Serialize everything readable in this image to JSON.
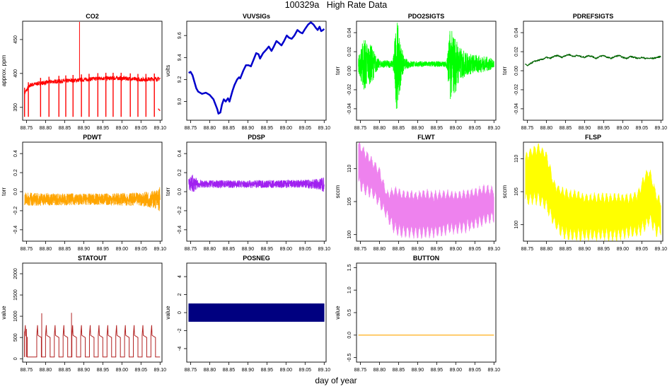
{
  "page": {
    "title": "100329a   High Rate Data",
    "xlabel": "day of year"
  },
  "chart_data": [
    {
      "type": "line",
      "title": "CO2",
      "ylabel": "approx. ppm",
      "xlim": [
        88.74,
        89.105
      ],
      "ylim": [
        331,
        477
      ],
      "yticks": [
        350,
        400,
        450
      ],
      "xticks": [
        88.75,
        88.8,
        88.85,
        88.9,
        88.95,
        89.0,
        89.05,
        89.1
      ],
      "color": "#ff0000",
      "baseline": [
        [
          88.745,
          371
        ],
        [
          88.76,
          383
        ],
        [
          88.78,
          385
        ],
        [
          88.82,
          388
        ],
        [
          88.88,
          390
        ],
        [
          88.95,
          393
        ],
        [
          89.0,
          393
        ],
        [
          89.05,
          391
        ],
        [
          89.09,
          392
        ]
      ],
      "noise": 3,
      "spikes_down": [
        88.745,
        88.755,
        88.787,
        88.809,
        88.835,
        88.853,
        88.872,
        88.894,
        88.914,
        88.937,
        88.958,
        88.977,
        88.998,
        89.022,
        89.042,
        89.063,
        89.085
      ],
      "spike_down_to": 336,
      "spikes_up": [
        [
          88.889,
          476
        ]
      ],
      "tail": [
        [
          89.095,
          348
        ],
        [
          89.1,
          345
        ]
      ]
    },
    {
      "type": "line",
      "title": "VUVSIGs",
      "ylabel": "volts",
      "xlim": [
        88.74,
        89.105
      ],
      "ylim": [
        8.83,
        9.73
      ],
      "yticks": [
        9.0,
        9.2,
        9.4,
        9.6
      ],
      "xticks": [
        88.75,
        88.8,
        88.85,
        88.9,
        88.95,
        89.0,
        89.05,
        89.1
      ],
      "color": "#0000cc",
      "line_width": 2.5,
      "points": [
        [
          88.745,
          9.26
        ],
        [
          88.75,
          9.27
        ],
        [
          88.755,
          9.24
        ],
        [
          88.76,
          9.18
        ],
        [
          88.765,
          9.12
        ],
        [
          88.77,
          9.09
        ],
        [
          88.78,
          9.07
        ],
        [
          88.79,
          9.08
        ],
        [
          88.8,
          9.06
        ],
        [
          88.81,
          9.02
        ],
        [
          88.82,
          8.93
        ],
        [
          88.823,
          8.89
        ],
        [
          88.828,
          8.9
        ],
        [
          88.832,
          8.97
        ],
        [
          88.837,
          9.02
        ],
        [
          88.842,
          9.0
        ],
        [
          88.848,
          9.03
        ],
        [
          88.852,
          9.0
        ],
        [
          88.86,
          9.1
        ],
        [
          88.865,
          9.15
        ],
        [
          88.872,
          9.2
        ],
        [
          88.877,
          9.22
        ],
        [
          88.88,
          9.21
        ],
        [
          88.888,
          9.28
        ],
        [
          88.895,
          9.33
        ],
        [
          88.902,
          9.33
        ],
        [
          88.908,
          9.32
        ],
        [
          88.915,
          9.38
        ],
        [
          88.922,
          9.44
        ],
        [
          88.928,
          9.43
        ],
        [
          88.932,
          9.39
        ],
        [
          88.94,
          9.44
        ],
        [
          88.948,
          9.47
        ],
        [
          88.955,
          9.5
        ],
        [
          88.962,
          9.46
        ],
        [
          88.968,
          9.5
        ],
        [
          88.975,
          9.55
        ],
        [
          88.982,
          9.53
        ],
        [
          88.988,
          9.51
        ],
        [
          88.995,
          9.55
        ],
        [
          89.002,
          9.6
        ],
        [
          89.008,
          9.58
        ],
        [
          89.015,
          9.57
        ],
        [
          89.022,
          9.6
        ],
        [
          89.03,
          9.65
        ],
        [
          89.037,
          9.63
        ],
        [
          89.043,
          9.62
        ],
        [
          89.05,
          9.66
        ],
        [
          89.058,
          9.7
        ],
        [
          89.065,
          9.72
        ],
        [
          89.072,
          9.7
        ],
        [
          89.078,
          9.67
        ],
        [
          89.083,
          9.65
        ],
        [
          89.088,
          9.68
        ],
        [
          89.092,
          9.64
        ],
        [
          89.097,
          9.65
        ],
        [
          89.1,
          9.66
        ]
      ]
    },
    {
      "type": "line",
      "title": "PDO2SIGTS",
      "ylabel": "torr",
      "xlim": [
        88.74,
        89.105
      ],
      "ylim": [
        -0.052,
        0.052
      ],
      "yticks": [
        -0.04,
        -0.02,
        0.0,
        0.02,
        0.04
      ],
      "xticks": [
        88.75,
        88.8,
        88.85,
        88.9,
        88.95,
        89.0,
        89.05,
        89.1
      ],
      "color": "#00ff00",
      "baseline": [
        [
          88.745,
          0.007
        ],
        [
          89.1,
          0.007
        ]
      ],
      "envelope": [
        [
          88.745,
          0.008
        ],
        [
          88.76,
          0.03
        ],
        [
          88.77,
          0.022
        ],
        [
          88.78,
          0.02
        ],
        [
          88.79,
          0.01
        ],
        [
          88.8,
          0.004
        ],
        [
          88.835,
          0.004
        ],
        [
          88.845,
          0.05
        ],
        [
          88.855,
          0.025
        ],
        [
          88.865,
          0.006
        ],
        [
          88.89,
          0.003
        ],
        [
          88.93,
          0.003
        ],
        [
          88.975,
          0.003
        ],
        [
          88.985,
          0.038
        ],
        [
          89.0,
          0.03
        ],
        [
          89.01,
          0.018
        ],
        [
          89.03,
          0.012
        ],
        [
          89.05,
          0.01
        ],
        [
          89.08,
          0.008
        ],
        [
          89.1,
          0.005
        ]
      ]
    },
    {
      "type": "line",
      "title": "PDREFSIGTS",
      "ylabel": "torr",
      "xlim": [
        88.74,
        89.105
      ],
      "ylim": [
        -0.052,
        0.052
      ],
      "yticks": [
        -0.04,
        -0.02,
        0.0,
        0.02,
        0.04
      ],
      "xticks": [
        88.75,
        88.8,
        88.85,
        88.9,
        88.95,
        89.0,
        89.05,
        89.1
      ],
      "color": "#006400",
      "noise": 0.0007,
      "points": [
        [
          88.745,
          0.007
        ],
        [
          88.75,
          0.005
        ],
        [
          88.76,
          0.008
        ],
        [
          88.77,
          0.01
        ],
        [
          88.78,
          0.011
        ],
        [
          88.79,
          0.012
        ],
        [
          88.8,
          0.014
        ],
        [
          88.81,
          0.013
        ],
        [
          88.82,
          0.015
        ],
        [
          88.83,
          0.016
        ],
        [
          88.84,
          0.014
        ],
        [
          88.85,
          0.016
        ],
        [
          88.86,
          0.017
        ],
        [
          88.87,
          0.015
        ],
        [
          88.88,
          0.016
        ],
        [
          88.89,
          0.015
        ],
        [
          88.9,
          0.014
        ],
        [
          88.91,
          0.016
        ],
        [
          88.92,
          0.015
        ],
        [
          88.93,
          0.013
        ],
        [
          88.94,
          0.015
        ],
        [
          88.95,
          0.016
        ],
        [
          88.96,
          0.014
        ],
        [
          88.97,
          0.013
        ],
        [
          88.98,
          0.015
        ],
        [
          88.99,
          0.016
        ],
        [
          89.0,
          0.014
        ],
        [
          89.01,
          0.013
        ],
        [
          89.02,
          0.015
        ],
        [
          89.03,
          0.014
        ],
        [
          89.04,
          0.013
        ],
        [
          89.05,
          0.014
        ],
        [
          89.06,
          0.013
        ],
        [
          89.07,
          0.013
        ],
        [
          89.08,
          0.013
        ],
        [
          89.09,
          0.014
        ],
        [
          89.1,
          0.015
        ]
      ]
    },
    {
      "type": "line",
      "title": "PDWT",
      "ylabel": "torr",
      "xlim": [
        88.74,
        89.105
      ],
      "ylim": [
        -0.52,
        0.52
      ],
      "yticks": [
        -0.4,
        -0.2,
        0.0,
        0.2,
        0.4
      ],
      "xticks": [
        88.75,
        88.8,
        88.85,
        88.9,
        88.95,
        89.0,
        89.05,
        89.1
      ],
      "color": "#ffa500",
      "baseline": [
        [
          88.745,
          -0.08
        ],
        [
          89.1,
          -0.08
        ]
      ],
      "envelope": [
        [
          88.745,
          0.07
        ],
        [
          88.76,
          0.07
        ],
        [
          88.9,
          0.06
        ],
        [
          89.05,
          0.07
        ],
        [
          89.09,
          0.1
        ],
        [
          89.1,
          0.15
        ]
      ]
    },
    {
      "type": "line",
      "title": "PDSP",
      "ylabel": "torr",
      "xlim": [
        88.74,
        89.105
      ],
      "ylim": [
        -0.52,
        0.52
      ],
      "yticks": [
        -0.4,
        -0.2,
        0.0,
        0.2,
        0.4
      ],
      "xticks": [
        88.75,
        88.8,
        88.85,
        88.9,
        88.95,
        89.0,
        89.05,
        89.1
      ],
      "color": "#a020f0",
      "baseline": [
        [
          88.745,
          0.08
        ],
        [
          89.1,
          0.08
        ]
      ],
      "envelope": [
        [
          88.745,
          0.06
        ],
        [
          88.755,
          0.1
        ],
        [
          88.77,
          0.04
        ],
        [
          88.9,
          0.04
        ],
        [
          89.05,
          0.045
        ],
        [
          89.09,
          0.06
        ],
        [
          89.1,
          0.09
        ]
      ]
    },
    {
      "type": "area",
      "title": "FLWT",
      "ylabel": "sccm",
      "xlim": [
        88.74,
        89.105
      ],
      "ylim": [
        99,
        114
      ],
      "yticks": [
        100,
        105,
        110
      ],
      "xticks": [
        88.75,
        88.8,
        88.85,
        88.9,
        88.95,
        89.0,
        89.05,
        89.1
      ],
      "color": "#ee82ee",
      "upper": [
        [
          88.745,
          113.5
        ],
        [
          88.76,
          112.5
        ],
        [
          88.78,
          111
        ],
        [
          88.8,
          109.5
        ],
        [
          88.82,
          106
        ],
        [
          88.84,
          106.5
        ],
        [
          88.86,
          106
        ],
        [
          88.88,
          106
        ],
        [
          88.9,
          105.8
        ],
        [
          88.92,
          106.2
        ],
        [
          88.94,
          105.8
        ],
        [
          88.96,
          106
        ],
        [
          88.98,
          106
        ],
        [
          89.0,
          105.8
        ],
        [
          89.02,
          106
        ],
        [
          89.04,
          106.2
        ],
        [
          89.06,
          106.5
        ],
        [
          89.08,
          106.8
        ],
        [
          89.1,
          106.5
        ]
      ],
      "lower": [
        [
          88.745,
          108
        ],
        [
          88.76,
          107
        ],
        [
          88.78,
          106.5
        ],
        [
          88.8,
          105
        ],
        [
          88.82,
          103
        ],
        [
          88.84,
          101
        ],
        [
          88.86,
          100.5
        ],
        [
          88.88,
          100.5
        ],
        [
          88.9,
          100.3
        ],
        [
          88.92,
          100.5
        ],
        [
          88.94,
          100.5
        ],
        [
          88.96,
          100.7
        ],
        [
          88.98,
          101
        ],
        [
          89.0,
          101
        ],
        [
          89.02,
          101.2
        ],
        [
          89.04,
          101.5
        ],
        [
          89.06,
          102
        ],
        [
          89.08,
          102.5
        ],
        [
          89.1,
          102.8
        ]
      ],
      "wave_period": 0.0105
    },
    {
      "type": "area",
      "title": "FLSP",
      "ylabel": "sccm",
      "xlim": [
        88.74,
        89.105
      ],
      "ylim": [
        97.5,
        112.5
      ],
      "yticks": [
        100,
        105,
        110
      ],
      "xticks": [
        88.75,
        88.8,
        88.85,
        88.9,
        88.95,
        89.0,
        89.05,
        89.1
      ],
      "color": "#ffff00",
      "upper": [
        [
          88.745,
          110
        ],
        [
          88.76,
          111
        ],
        [
          88.78,
          111.5
        ],
        [
          88.8,
          110.5
        ],
        [
          88.82,
          106
        ],
        [
          88.84,
          105
        ],
        [
          88.86,
          104.5
        ],
        [
          88.88,
          104.5
        ],
        [
          88.9,
          104
        ],
        [
          88.92,
          104
        ],
        [
          88.94,
          104
        ],
        [
          88.96,
          104
        ],
        [
          88.98,
          104
        ],
        [
          89.0,
          104
        ],
        [
          89.02,
          104
        ],
        [
          89.04,
          104.5
        ],
        [
          89.06,
          107.5
        ],
        [
          89.07,
          108
        ],
        [
          89.08,
          106
        ],
        [
          89.09,
          104
        ],
        [
          89.1,
          103.5
        ]
      ],
      "lower": [
        [
          88.745,
          104
        ],
        [
          88.76,
          104
        ],
        [
          88.78,
          104
        ],
        [
          88.8,
          103
        ],
        [
          88.82,
          100.5
        ],
        [
          88.84,
          99
        ],
        [
          88.86,
          98.5
        ],
        [
          88.88,
          98.5
        ],
        [
          88.9,
          98.5
        ],
        [
          88.92,
          98.5
        ],
        [
          88.94,
          98.5
        ],
        [
          88.96,
          98.5
        ],
        [
          88.98,
          98.5
        ],
        [
          89.0,
          98.8
        ],
        [
          89.02,
          99
        ],
        [
          89.04,
          99
        ],
        [
          89.06,
          100
        ],
        [
          89.07,
          101
        ],
        [
          89.08,
          100
        ],
        [
          89.09,
          99
        ],
        [
          89.1,
          99.5
        ]
      ],
      "wave_period": 0.0105
    },
    {
      "type": "line",
      "title": "STATOUT",
      "ylabel": "value",
      "xlim": [
        88.74,
        89.105
      ],
      "ylim": [
        -80,
        2250
      ],
      "yticks": [
        0,
        500,
        1000,
        1500,
        2000
      ],
      "xticks": [
        88.75,
        88.8,
        88.85,
        88.9,
        88.95,
        89.0,
        89.05,
        89.1
      ],
      "color": "#b22222",
      "base": 40,
      "pulse_level": 550,
      "peak_level": 790,
      "pulses": [
        [
          88.745,
          88.752
        ],
        [
          88.777,
          88.789
        ],
        [
          88.8,
          88.812
        ],
        [
          88.823,
          88.835
        ],
        [
          88.846,
          88.858
        ],
        [
          88.869,
          88.881
        ],
        [
          88.892,
          88.904
        ],
        [
          88.915,
          88.927
        ],
        [
          88.938,
          88.95
        ],
        [
          88.961,
          88.973
        ],
        [
          88.984,
          88.996
        ],
        [
          89.007,
          89.019
        ],
        [
          89.03,
          89.042
        ],
        [
          89.053,
          89.065
        ],
        [
          89.076,
          89.088
        ]
      ],
      "spikes": [
        [
          88.79,
          1070
        ],
        [
          88.868,
          1080
        ],
        [
          88.745,
          640
        ],
        [
          88.75,
          700
        ]
      ]
    },
    {
      "type": "area",
      "title": "POSNEG",
      "ylabel": "value",
      "xlim": [
        88.74,
        89.105
      ],
      "ylim": [
        -5.5,
        5.5
      ],
      "yticks": [
        -4,
        -2,
        0,
        2,
        4
      ],
      "xticks": [
        88.75,
        88.8,
        88.85,
        88.9,
        88.95,
        89.0,
        89.05,
        89.1
      ],
      "color": "#000080",
      "upper": [
        [
          88.745,
          1
        ],
        [
          89.1,
          1
        ]
      ],
      "lower": [
        [
          88.745,
          -1
        ],
        [
          89.1,
          -1
        ]
      ]
    },
    {
      "type": "line",
      "title": "BUTTON",
      "ylabel": "value",
      "xlim": [
        88.74,
        89.105
      ],
      "ylim": [
        -0.6,
        1.6
      ],
      "yticks": [
        -0.5,
        0.0,
        0.5,
        1.0,
        1.5
      ],
      "xticks": [
        88.75,
        88.8,
        88.85,
        88.9,
        88.95,
        89.0,
        89.05,
        89.1
      ],
      "color": "#ffa500",
      "points": [
        [
          88.745,
          0
        ],
        [
          89.1,
          0
        ]
      ]
    }
  ]
}
